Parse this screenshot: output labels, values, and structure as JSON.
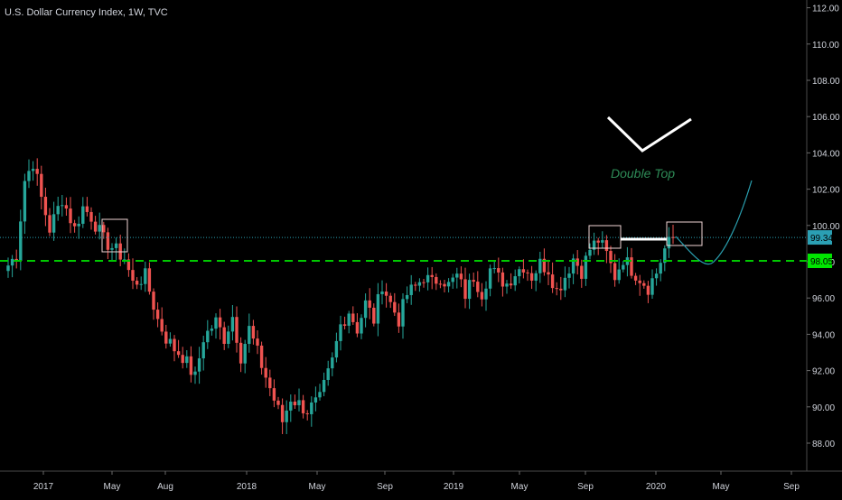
{
  "title": "U.S. Dollar Currency Index, 1W, TVC",
  "chart_data": {
    "type": "candlestick",
    "title": "U.S. Dollar Currency Index, 1W, TVC",
    "ylim": [
      87,
      112.5
    ],
    "y_ticks": [
      "88.00",
      "90.00",
      "92.00",
      "94.00",
      "96.00",
      "98.00",
      "100.00",
      "102.00",
      "104.00",
      "106.00",
      "108.00",
      "110.00",
      "112.00"
    ],
    "x_ticks": [
      "2017",
      "May",
      "Aug",
      "2018",
      "May",
      "Sep",
      "2019",
      "May",
      "Sep",
      "2020",
      "May",
      "Sep"
    ],
    "grid": false,
    "colors": {
      "up": "#26a69a",
      "down": "#ef5350",
      "background": "#000000",
      "text": "#d1d4dc",
      "support": "#00c800",
      "projection": "#2aa0b0",
      "annotation": "#2e8b57"
    },
    "price_labels": [
      {
        "value": 99.34,
        "text": "99.34",
        "color": "#2b9fb3"
      },
      {
        "value": 98.05,
        "text": "98.05",
        "color": "#00e600"
      }
    ],
    "support_line": 98.05,
    "current_price": 99.34,
    "annotations": [
      {
        "type": "text",
        "text": "Double Top",
        "color": "#2e8b57"
      }
    ],
    "anchors": [
      [
        0,
        97.8
      ],
      [
        2,
        98.4
      ],
      [
        4,
        102.5
      ],
      [
        6,
        103.5
      ],
      [
        8,
        101.5
      ],
      [
        10,
        99.8
      ],
      [
        13,
        101.5
      ],
      [
        16,
        99.8
      ],
      [
        18,
        101
      ],
      [
        20,
        100.5
      ],
      [
        23,
        99.2
      ],
      [
        26,
        98.6
      ],
      [
        28,
        98.2
      ],
      [
        30,
        96.8
      ],
      [
        33,
        97.2
      ],
      [
        36,
        94.8
      ],
      [
        38,
        93.8
      ],
      [
        40,
        93.2
      ],
      [
        42,
        92.8
      ],
      [
        45,
        91.6
      ],
      [
        47,
        93.8
      ],
      [
        50,
        94.7
      ],
      [
        52,
        93.8
      ],
      [
        54,
        95
      ],
      [
        56,
        92.8
      ],
      [
        58,
        94.3
      ],
      [
        61,
        92.3
      ],
      [
        64,
        90.4
      ],
      [
        66,
        89.2
      ],
      [
        68,
        90.5
      ],
      [
        72,
        89.8
      ],
      [
        75,
        90.4
      ],
      [
        78,
        92.5
      ],
      [
        80,
        94.5
      ],
      [
        82,
        95.3
      ],
      [
        84,
        94.3
      ],
      [
        86,
        95.7
      ],
      [
        88,
        94.8
      ],
      [
        90,
        96.8
      ],
      [
        92,
        95.7
      ],
      [
        94,
        94.8
      ],
      [
        96,
        96.2
      ],
      [
        98,
        96.6
      ],
      [
        100,
        97.2
      ],
      [
        102,
        96.8
      ],
      [
        104,
        97.2
      ],
      [
        106,
        96.7
      ],
      [
        108,
        97.2
      ],
      [
        110,
        96.2
      ],
      [
        112,
        97.2
      ],
      [
        114,
        96.3
      ],
      [
        116,
        97.6
      ],
      [
        118,
        97.1
      ],
      [
        120,
        96.8
      ],
      [
        122,
        97.4
      ],
      [
        124,
        97.8
      ],
      [
        126,
        97.2
      ],
      [
        128,
        97.9
      ],
      [
        130,
        97.6
      ],
      [
        132,
        96.4
      ],
      [
        134,
        97.2
      ],
      [
        136,
        98.2
      ],
      [
        138,
        97.5
      ],
      [
        140,
        98.7
      ],
      [
        142,
        99.2
      ],
      [
        144,
        98.4
      ],
      [
        146,
        97.2
      ],
      [
        148,
        98.2
      ],
      [
        150,
        97.6
      ],
      [
        152,
        97.1
      ],
      [
        154,
        96.6
      ],
      [
        156,
        97.4
      ],
      [
        158,
        98.7
      ],
      [
        160,
        99.3
      ]
    ]
  }
}
